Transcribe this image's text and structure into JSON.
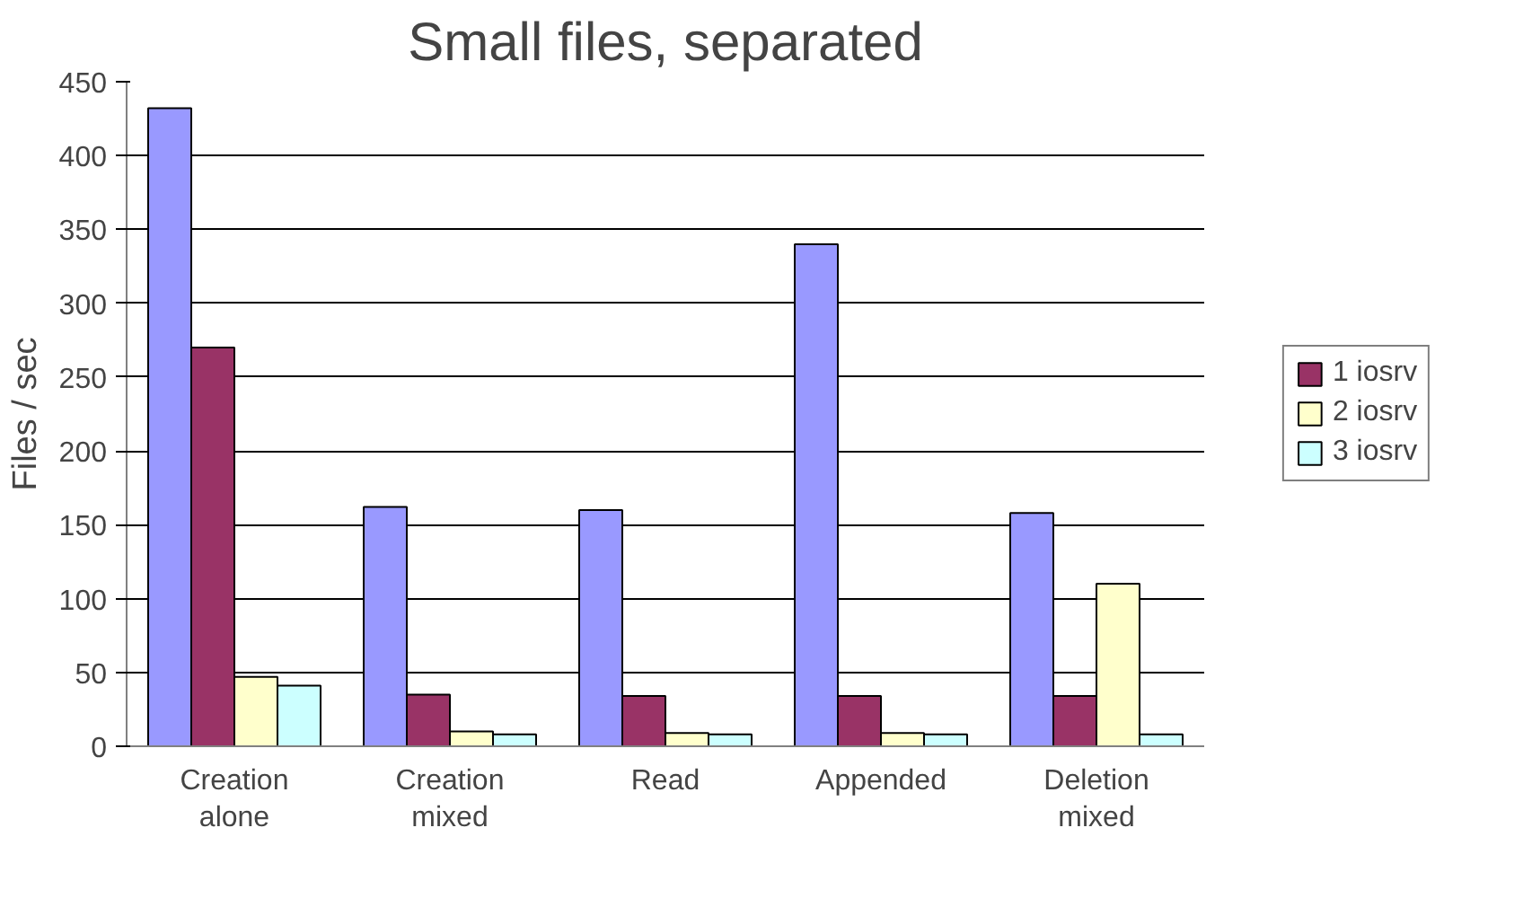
{
  "chart_data": {
    "type": "bar",
    "title": "Small files, separated",
    "ylabel": "Files / sec",
    "categories": [
      "Creation\nalone",
      "Creation\nmixed",
      "Read",
      "Appended",
      "Deletion\nmixed"
    ],
    "series": [
      {
        "color": "#9999ff",
        "values": [
          432,
          162,
          160,
          340,
          158
        ]
      },
      {
        "name": "1 iosrv",
        "color": "#993366",
        "values": [
          270,
          35,
          34,
          34,
          34
        ]
      },
      {
        "name": "2 iosrv",
        "color": "#ffffcc",
        "values": [
          47,
          10,
          9,
          9,
          110
        ]
      },
      {
        "name": "3 iosrv",
        "color": "#ccffff",
        "values": [
          41,
          8,
          8,
          8,
          8
        ]
      }
    ],
    "ylim": [
      0,
      450
    ],
    "yticks": [
      0,
      50,
      100,
      150,
      200,
      250,
      300,
      350,
      400,
      450
    ],
    "grid": "y",
    "legend": "right"
  }
}
